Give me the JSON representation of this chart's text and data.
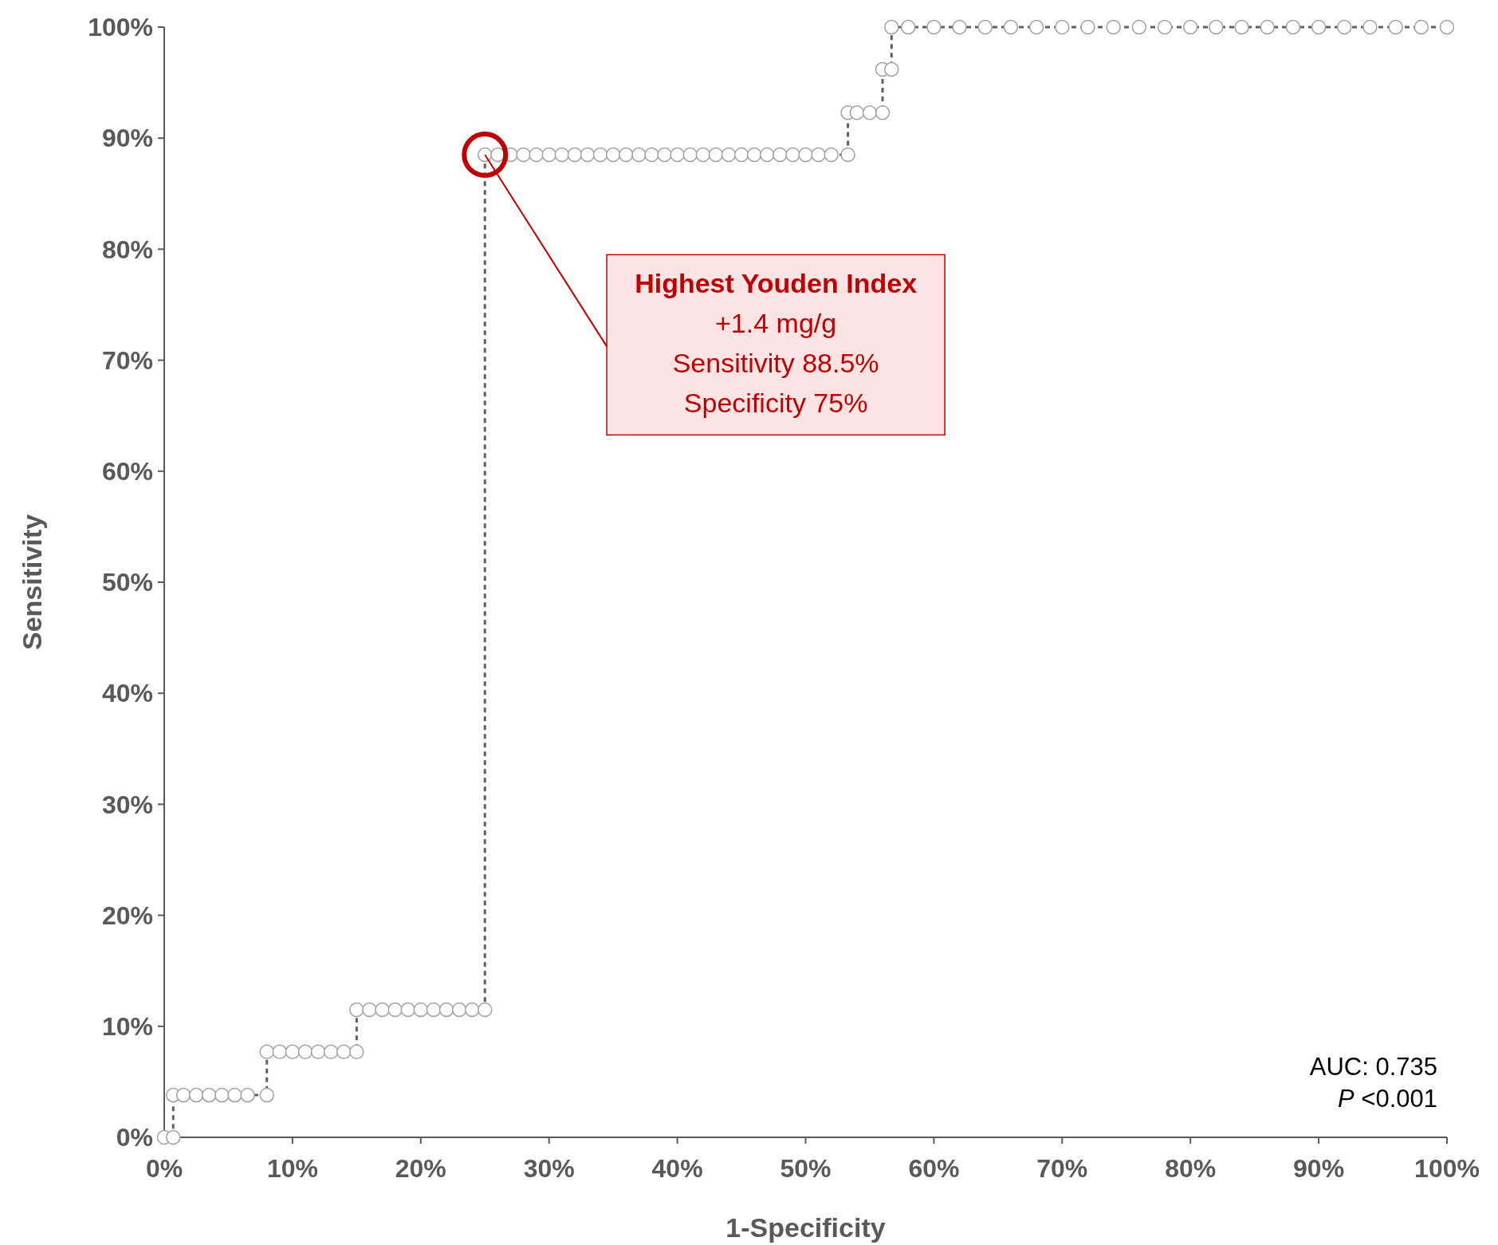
{
  "chart_data": {
    "type": "step",
    "xlabel": "1-Specificity",
    "ylabel": "Sensitivity",
    "xlim": [
      0,
      100
    ],
    "ylim": [
      0,
      100
    ],
    "xticks": [
      {
        "value": 0,
        "label": "0%"
      },
      {
        "value": 10,
        "label": "10%"
      },
      {
        "value": 20,
        "label": "20%"
      },
      {
        "value": 30,
        "label": "30%"
      },
      {
        "value": 40,
        "label": "40%"
      },
      {
        "value": 50,
        "label": "50%"
      },
      {
        "value": 60,
        "label": "60%"
      },
      {
        "value": 70,
        "label": "70%"
      },
      {
        "value": 80,
        "label": "80%"
      },
      {
        "value": 90,
        "label": "90%"
      },
      {
        "value": 100,
        "label": "100%"
      }
    ],
    "yticks": [
      {
        "value": 0,
        "label": "0%"
      },
      {
        "value": 10,
        "label": "10%"
      },
      {
        "value": 20,
        "label": "20%"
      },
      {
        "value": 30,
        "label": "30%"
      },
      {
        "value": 40,
        "label": "40%"
      },
      {
        "value": 50,
        "label": "50%"
      },
      {
        "value": 60,
        "label": "60%"
      },
      {
        "value": 70,
        "label": "70%"
      },
      {
        "value": 80,
        "label": "80%"
      },
      {
        "value": 90,
        "label": "90%"
      },
      {
        "value": 100,
        "label": "100%"
      }
    ],
    "grid": false,
    "marker": "circle",
    "line_style": "dashed",
    "series": [
      {
        "color": "#606060",
        "x": [
          0,
          0.7,
          0.7,
          1.5,
          2.5,
          3.5,
          4.5,
          5.5,
          6.5,
          8.0,
          8.0,
          9,
          10,
          11,
          12,
          13,
          14,
          15.0,
          15.0,
          16,
          17,
          18,
          19,
          20,
          21,
          22,
          23,
          24,
          25.0,
          25.0,
          26,
          27,
          28,
          29,
          30,
          31,
          32,
          33,
          34,
          35,
          36,
          37,
          38,
          39,
          40,
          41,
          42,
          43,
          44,
          45,
          46,
          47,
          48,
          49,
          50,
          51,
          52,
          53.3,
          53.3,
          54,
          55,
          56.0,
          56.0,
          56.7,
          56.7,
          58,
          60,
          62,
          64,
          66,
          68,
          70,
          72,
          74,
          76,
          78,
          80,
          82,
          84,
          86,
          88,
          90,
          92,
          94,
          96,
          98,
          100
        ],
        "values": [
          0,
          0,
          3.8,
          3.8,
          3.8,
          3.8,
          3.8,
          3.8,
          3.8,
          3.8,
          7.7,
          7.7,
          7.7,
          7.7,
          7.7,
          7.7,
          7.7,
          7.7,
          11.5,
          11.5,
          11.5,
          11.5,
          11.5,
          11.5,
          11.5,
          11.5,
          11.5,
          11.5,
          11.5,
          88.5,
          88.5,
          88.5,
          88.5,
          88.5,
          88.5,
          88.5,
          88.5,
          88.5,
          88.5,
          88.5,
          88.5,
          88.5,
          88.5,
          88.5,
          88.5,
          88.5,
          88.5,
          88.5,
          88.5,
          88.5,
          88.5,
          88.5,
          88.5,
          88.5,
          88.5,
          88.5,
          88.5,
          88.5,
          92.3,
          92.3,
          92.3,
          92.3,
          96.2,
          96.2,
          100,
          100,
          100,
          100,
          100,
          100,
          100,
          100,
          100,
          100,
          100,
          100,
          100,
          100,
          100,
          100,
          100,
          100,
          100,
          100,
          100,
          100,
          100
        ]
      }
    ],
    "annotations": [
      {
        "text": "Highest Youden Index\n+1.4 mg/g\nSensitivity 88.5%\nSpecificity 75%",
        "x": 25,
        "y": 88.5
      },
      "AUC: 0.735",
      "P <0.001"
    ]
  }
}
